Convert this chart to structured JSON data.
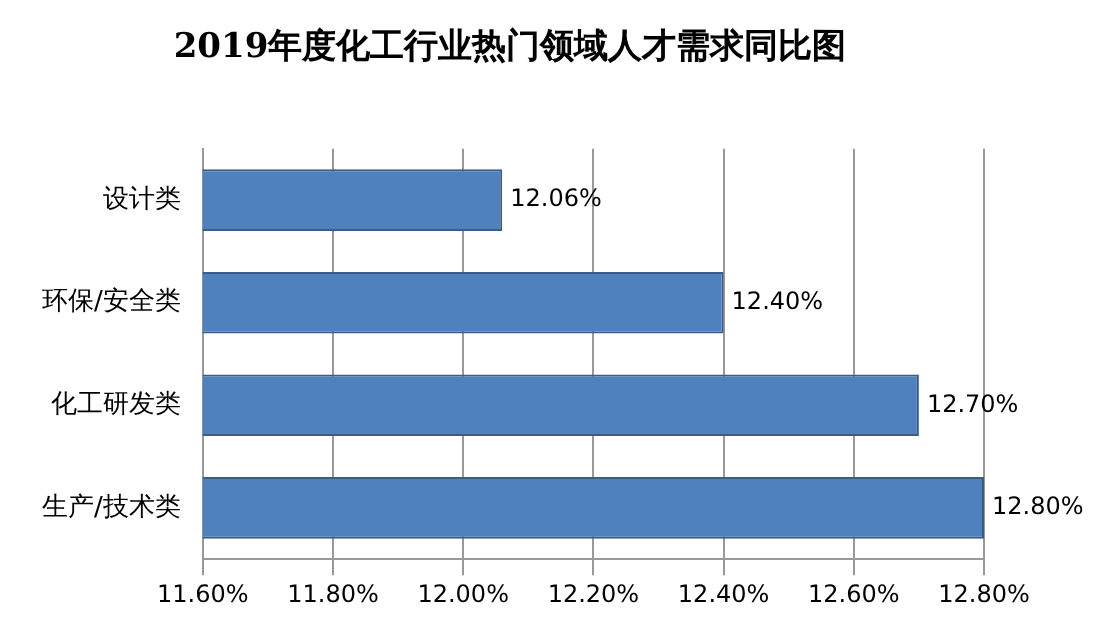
{
  "chart_data": {
    "type": "bar",
    "orientation": "horizontal",
    "title": "2019年度化工行业热门领域人才需求同比图",
    "categories": [
      "设计类",
      "环保/安全类",
      "化工研发类",
      "生产/技术类"
    ],
    "values": [
      12.06,
      12.4,
      12.7,
      12.8
    ],
    "color": "#4f81bd",
    "value_labels": [
      "12.06%",
      "12.40%",
      "12.70%",
      "12.80%"
    ],
    "xlim": [
      11.6,
      12.8
    ],
    "xticks": [
      {
        "value": 11.6,
        "label": "11.60%"
      },
      {
        "value": 11.8,
        "label": "11.80%"
      },
      {
        "value": 12.0,
        "label": "12.00%"
      },
      {
        "value": 12.2,
        "label": "12.20%"
      },
      {
        "value": 12.4,
        "label": "12.40%"
      },
      {
        "value": 12.6,
        "label": "12.60%"
      },
      {
        "value": 12.8,
        "label": "12.80%"
      }
    ],
    "grid": "x",
    "legend": false
  }
}
